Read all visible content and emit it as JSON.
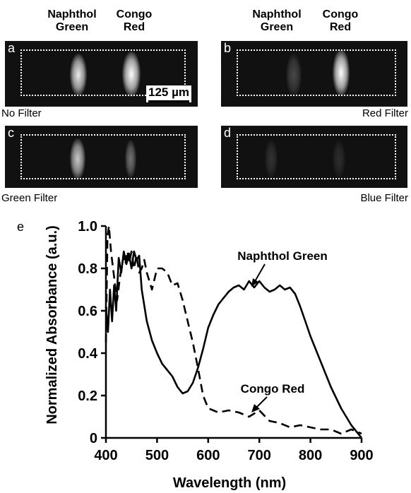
{
  "top_labels": {
    "left": {
      "naphthol": "Naphthol\nGreen",
      "congo": "Congo\nRed"
    },
    "right": {
      "naphthol": "Naphthol\nGreen",
      "congo": "Congo\nRed"
    }
  },
  "panels": [
    {
      "letter": "a",
      "caption": "No Filter",
      "naphthol_intensity": 0.9,
      "congo_intensity": 1.0
    },
    {
      "letter": "b",
      "caption": "Red Filter",
      "naphthol_intensity": 0.15,
      "congo_intensity": 1.0
    },
    {
      "letter": "c",
      "caption": "Green Filter",
      "naphthol_intensity": 0.75,
      "congo_intensity": 0.35
    },
    {
      "letter": "d",
      "caption": "Blue Filter",
      "naphthol_intensity": 0.05,
      "congo_intensity": 0.03
    }
  ],
  "scale_bar": "125 µm",
  "chart_data": {
    "panel_letter": "e",
    "type": "line",
    "xlabel": "Wavelength (nm)",
    "ylabel": "Normalized Absorbance (a.u.)",
    "xlim": [
      400,
      900
    ],
    "ylim": [
      0,
      1.0
    ],
    "xticks": [
      400,
      500,
      600,
      700,
      800,
      900
    ],
    "yticks": [
      0,
      0.2,
      0.4,
      0.6,
      0.8,
      1.0
    ],
    "ytick_labels": [
      "0",
      "0.2",
      "0.4",
      "0.6",
      "0.8",
      "1.0"
    ],
    "series": [
      {
        "name": "Naphthol Green",
        "style": "solid",
        "x": [
          400,
          404,
          408,
          412,
          416,
          420,
          425,
          430,
          435,
          440,
          445,
          450,
          455,
          460,
          465,
          470,
          480,
          490,
          500,
          510,
          520,
          530,
          540,
          550,
          560,
          570,
          580,
          590,
          600,
          610,
          620,
          630,
          640,
          650,
          660,
          670,
          680,
          690,
          700,
          710,
          720,
          730,
          740,
          750,
          760,
          770,
          780,
          790,
          800,
          820,
          840,
          860,
          880,
          900
        ],
        "y": [
          0.62,
          0.5,
          0.7,
          0.55,
          0.72,
          0.6,
          0.85,
          0.78,
          0.88,
          0.82,
          0.87,
          0.8,
          0.88,
          0.84,
          0.86,
          0.7,
          0.55,
          0.46,
          0.4,
          0.35,
          0.32,
          0.29,
          0.24,
          0.21,
          0.22,
          0.26,
          0.33,
          0.42,
          0.52,
          0.58,
          0.63,
          0.66,
          0.69,
          0.71,
          0.72,
          0.7,
          0.74,
          0.71,
          0.74,
          0.71,
          0.69,
          0.7,
          0.72,
          0.7,
          0.71,
          0.68,
          0.62,
          0.55,
          0.48,
          0.36,
          0.24,
          0.14,
          0.06,
          0.0
        ]
      },
      {
        "name": "Congo Red",
        "style": "dashed",
        "x": [
          400,
          403,
          406,
          410,
          414,
          418,
          422,
          426,
          430,
          434,
          438,
          442,
          446,
          450,
          455,
          460,
          465,
          470,
          475,
          480,
          490,
          500,
          510,
          520,
          530,
          540,
          550,
          560,
          570,
          580,
          590,
          600,
          620,
          640,
          660,
          680,
          700,
          720,
          740,
          760,
          780,
          800,
          820,
          840,
          860,
          870,
          880,
          890,
          900
        ],
        "y": [
          0.45,
          0.95,
          1.0,
          0.88,
          0.8,
          0.72,
          0.65,
          0.73,
          0.8,
          0.85,
          0.82,
          0.88,
          0.83,
          0.88,
          0.8,
          0.86,
          0.78,
          0.8,
          0.84,
          0.78,
          0.7,
          0.8,
          0.8,
          0.78,
          0.72,
          0.73,
          0.65,
          0.55,
          0.45,
          0.33,
          0.2,
          0.14,
          0.12,
          0.13,
          0.12,
          0.1,
          0.13,
          0.08,
          0.07,
          0.05,
          0.06,
          0.05,
          0.04,
          0.04,
          0.02,
          0.03,
          0.04,
          0.03,
          0.02
        ]
      }
    ],
    "annotations": [
      {
        "text": "Naphthol Green",
        "series": "Naphthol Green"
      },
      {
        "text": "Congo Red",
        "series": "Congo Red"
      }
    ]
  }
}
